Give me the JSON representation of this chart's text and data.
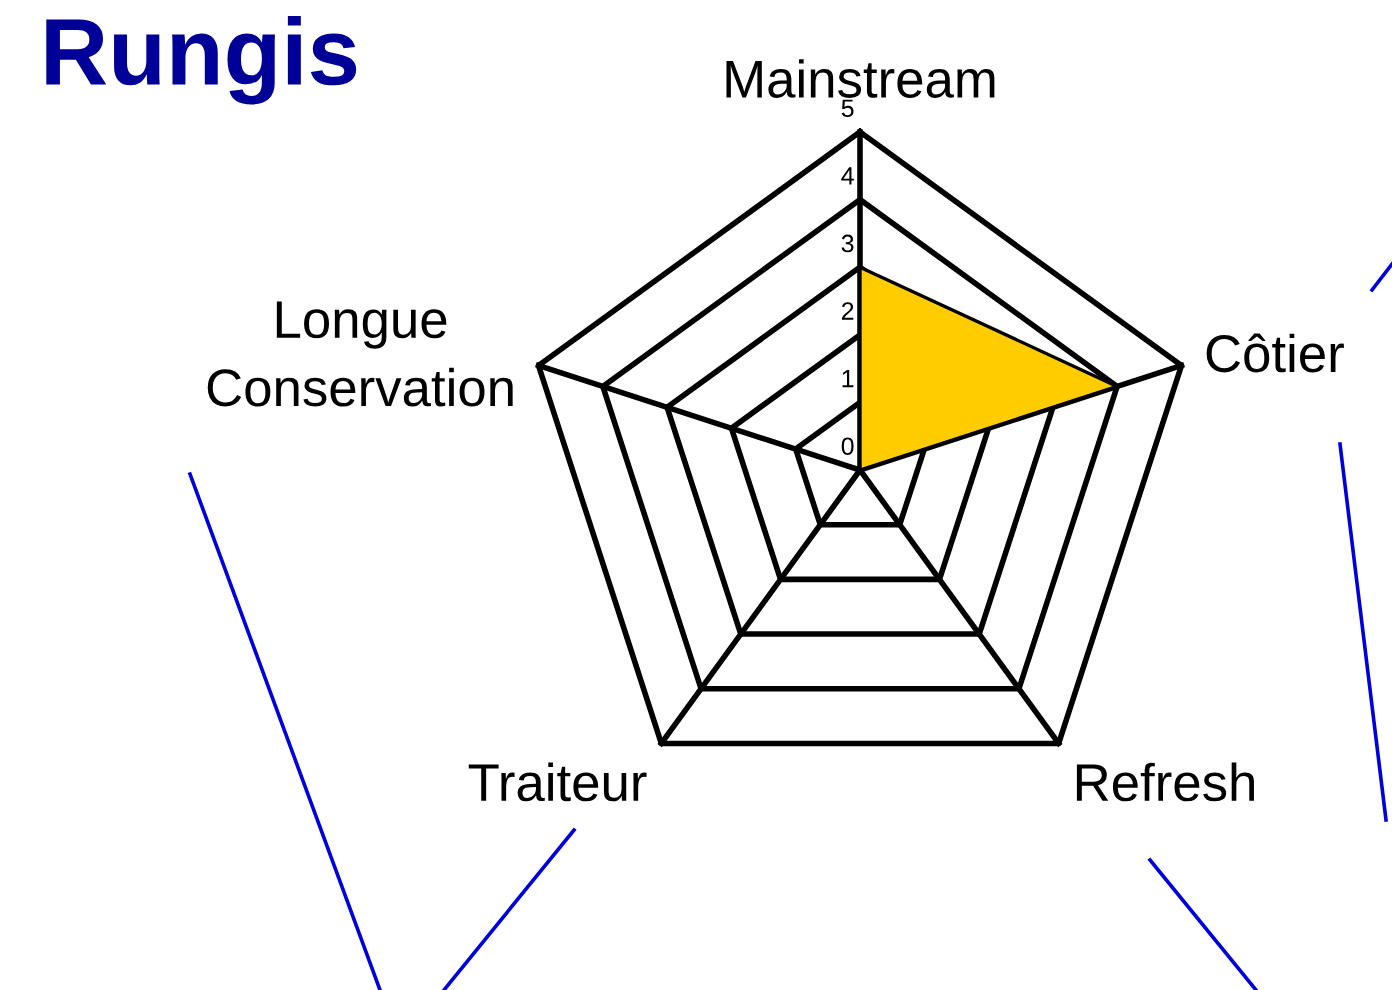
{
  "chart_data": {
    "type": "radar",
    "title": "Rungis",
    "categories": [
      "Mainstream",
      "Côtier",
      "Refresh",
      "Traiteur",
      "Longue\nConservation"
    ],
    "series": [
      {
        "color": "#ffcc00",
        "values": [
          3,
          4,
          0,
          0,
          0
        ]
      }
    ],
    "ylim": [
      0,
      5
    ],
    "yticks": [
      0,
      1,
      2,
      3,
      4,
      5
    ],
    "grid": true
  }
}
